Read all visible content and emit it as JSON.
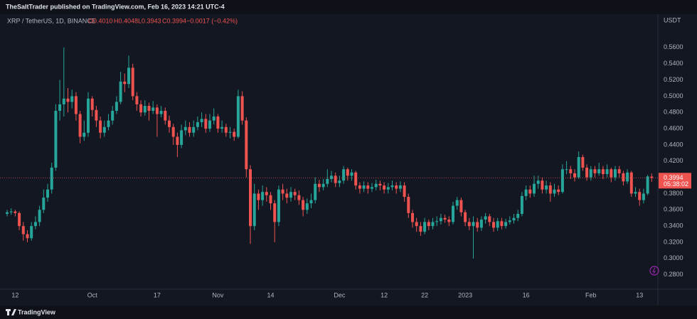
{
  "chart_data": {
    "type": "candlestick",
    "attribution": "TheSaltTrader published on TradingView.com, Feb 16, 2023 14:21 UTC-4",
    "title": "XRP / TetherUS, 1D, BINANCE",
    "ohlc_header": {
      "open": "O0.4010",
      "high": "H0.4048",
      "low": "L0.3943",
      "close": "C0.3994",
      "change": "−0.0017 (−0.42%)"
    },
    "currency": "USDT",
    "last_price_label": "0.3994",
    "countdown": "05:38:02",
    "brand": "TradingView",
    "up_color": "#26a69a",
    "down_color": "#ef5350",
    "categories": [
      null,
      null,
      "12",
      null,
      null,
      null,
      null,
      null,
      null,
      null,
      null,
      null,
      null,
      null,
      null,
      null,
      null,
      null,
      null,
      null,
      null,
      "Oct",
      null,
      null,
      null,
      null,
      null,
      null,
      null,
      null,
      null,
      null,
      null,
      null,
      null,
      null,
      null,
      "17",
      null,
      null,
      null,
      null,
      null,
      null,
      null,
      null,
      null,
      null,
      null,
      null,
      null,
      null,
      "Nov",
      null,
      null,
      null,
      null,
      null,
      null,
      null,
      null,
      null,
      null,
      null,
      null,
      "14",
      null,
      null,
      null,
      null,
      null,
      null,
      null,
      null,
      null,
      null,
      null,
      null,
      null,
      null,
      null,
      null,
      "Dec",
      null,
      null,
      null,
      null,
      null,
      null,
      null,
      null,
      null,
      null,
      "12",
      null,
      null,
      null,
      null,
      null,
      null,
      null,
      null,
      null,
      "22",
      null,
      null,
      null,
      null,
      null,
      null,
      null,
      null,
      null,
      "2023",
      null,
      null,
      null,
      null,
      null,
      null,
      null,
      null,
      null,
      null,
      null,
      null,
      null,
      null,
      "16",
      null,
      null,
      null,
      null,
      null,
      null,
      null,
      null,
      null,
      null,
      null,
      null,
      null,
      null,
      null,
      "Feb",
      null,
      null,
      null,
      null,
      null,
      null,
      null,
      null,
      null,
      null,
      null,
      "13",
      null,
      null,
      null
    ],
    "open": [
      0.355,
      0.357,
      0.358,
      0.356,
      0.34,
      0.33,
      0.325,
      0.34,
      0.345,
      0.36,
      0.375,
      0.385,
      0.412,
      0.482,
      0.49,
      0.497,
      0.493,
      0.5,
      0.478,
      0.45,
      0.455,
      0.497,
      0.483,
      0.47,
      0.455,
      0.462,
      0.47,
      0.482,
      0.493,
      0.518,
      0.515,
      0.535,
      0.5,
      0.49,
      0.48,
      0.488,
      0.482,
      0.486,
      0.478,
      0.482,
      0.47,
      0.462,
      0.45,
      0.44,
      0.458,
      0.462,
      0.455,
      0.462,
      0.468,
      0.472,
      0.46,
      0.47,
      0.475,
      0.46,
      0.462,
      0.455,
      0.456,
      0.45,
      0.5,
      0.47,
      0.41,
      0.34,
      0.38,
      0.372,
      0.382,
      0.378,
      0.368,
      0.345,
      0.385,
      0.38,
      0.375,
      0.382,
      0.378,
      0.372,
      0.36,
      0.368,
      0.372,
      0.392,
      0.388,
      0.392,
      0.398,
      0.402,
      0.393,
      0.396,
      0.41,
      0.402,
      0.406,
      0.39,
      0.386,
      0.39,
      0.386,
      0.388,
      0.392,
      0.39,
      0.385,
      0.388,
      0.39,
      0.386,
      0.39,
      0.376,
      0.356,
      0.345,
      0.34,
      0.333,
      0.345,
      0.34,
      0.345,
      0.346,
      0.35,
      0.348,
      0.345,
      0.365,
      0.372,
      0.357,
      0.345,
      0.34,
      0.345,
      0.338,
      0.348,
      0.352,
      0.345,
      0.338,
      0.346,
      0.34,
      0.345,
      0.347,
      0.35,
      0.355,
      0.377,
      0.385,
      0.38,
      0.392,
      0.396,
      0.385,
      0.39,
      0.38,
      0.385,
      0.382,
      0.41,
      0.41,
      0.405,
      0.4,
      0.425,
      0.412,
      0.4,
      0.41,
      0.405,
      0.41,
      0.404,
      0.41,
      0.4,
      0.41,
      0.405,
      0.395,
      0.406,
      0.38,
      0.382,
      0.372,
      0.38,
      0.401
    ],
    "high": [
      0.36,
      0.362,
      0.36,
      0.358,
      0.345,
      0.335,
      0.345,
      0.352,
      0.365,
      0.385,
      0.392,
      0.418,
      0.49,
      0.52,
      0.56,
      0.51,
      0.508,
      0.505,
      0.482,
      0.47,
      0.505,
      0.5,
      0.488,
      0.475,
      0.47,
      0.478,
      0.488,
      0.5,
      0.53,
      0.528,
      0.55,
      0.54,
      0.505,
      0.495,
      0.495,
      0.492,
      0.494,
      0.49,
      0.488,
      0.486,
      0.476,
      0.466,
      0.455,
      0.465,
      0.47,
      0.468,
      0.47,
      0.475,
      0.48,
      0.478,
      0.478,
      0.485,
      0.478,
      0.47,
      0.466,
      0.462,
      0.46,
      0.508,
      0.506,
      0.474,
      0.415,
      0.392,
      0.385,
      0.39,
      0.388,
      0.382,
      0.372,
      0.39,
      0.392,
      0.386,
      0.388,
      0.386,
      0.384,
      0.376,
      0.374,
      0.38,
      0.4,
      0.397,
      0.398,
      0.41,
      0.408,
      0.406,
      0.402,
      0.414,
      0.412,
      0.41,
      0.408,
      0.394,
      0.395,
      0.394,
      0.393,
      0.397,
      0.396,
      0.394,
      0.393,
      0.396,
      0.394,
      0.395,
      0.394,
      0.38,
      0.36,
      0.35,
      0.345,
      0.35,
      0.348,
      0.35,
      0.352,
      0.355,
      0.354,
      0.352,
      0.37,
      0.376,
      0.375,
      0.36,
      0.35,
      0.352,
      0.35,
      0.352,
      0.356,
      0.355,
      0.35,
      0.35,
      0.35,
      0.349,
      0.352,
      0.355,
      0.36,
      0.382,
      0.39,
      0.39,
      0.402,
      0.402,
      0.4,
      0.396,
      0.394,
      0.392,
      0.39,
      0.416,
      0.42,
      0.414,
      0.41,
      0.432,
      0.428,
      0.416,
      0.414,
      0.414,
      0.418,
      0.414,
      0.416,
      0.412,
      0.414,
      0.414,
      0.408,
      0.41,
      0.408,
      0.388,
      0.386,
      0.386,
      0.403,
      0.4048
    ],
    "low": [
      0.352,
      0.354,
      0.352,
      0.335,
      0.322,
      0.32,
      0.322,
      0.336,
      0.34,
      0.356,
      0.37,
      0.38,
      0.408,
      0.47,
      0.475,
      0.48,
      0.485,
      0.47,
      0.442,
      0.445,
      0.45,
      0.475,
      0.462,
      0.448,
      0.45,
      0.458,
      0.465,
      0.478,
      0.49,
      0.505,
      0.51,
      0.495,
      0.482,
      0.475,
      0.476,
      0.47,
      0.478,
      0.45,
      0.474,
      0.465,
      0.455,
      0.44,
      0.425,
      0.436,
      0.452,
      0.45,
      0.45,
      0.458,
      0.462,
      0.455,
      0.456,
      0.465,
      0.455,
      0.455,
      0.45,
      0.448,
      0.445,
      0.448,
      0.465,
      0.4,
      0.318,
      0.335,
      0.36,
      0.365,
      0.37,
      0.36,
      0.32,
      0.34,
      0.372,
      0.368,
      0.37,
      0.372,
      0.366,
      0.352,
      0.355,
      0.362,
      0.368,
      0.382,
      0.384,
      0.388,
      0.394,
      0.388,
      0.388,
      0.392,
      0.396,
      0.396,
      0.385,
      0.38,
      0.382,
      0.38,
      0.382,
      0.384,
      0.384,
      0.38,
      0.38,
      0.384,
      0.38,
      0.382,
      0.37,
      0.35,
      0.338,
      0.333,
      0.328,
      0.33,
      0.335,
      0.336,
      0.34,
      0.342,
      0.344,
      0.34,
      0.342,
      0.36,
      0.352,
      0.34,
      0.335,
      0.3,
      0.333,
      0.334,
      0.343,
      0.34,
      0.333,
      0.334,
      0.336,
      0.337,
      0.342,
      0.343,
      0.346,
      0.352,
      0.372,
      0.375,
      0.376,
      0.386,
      0.38,
      0.38,
      0.37,
      0.376,
      0.378,
      0.38,
      0.404,
      0.398,
      0.395,
      0.398,
      0.408,
      0.396,
      0.396,
      0.4,
      0.402,
      0.398,
      0.4,
      0.394,
      0.396,
      0.4,
      0.39,
      0.392,
      0.376,
      0.376,
      0.365,
      0.368,
      0.378,
      0.3943
    ],
    "close": [
      0.357,
      0.358,
      0.356,
      0.34,
      0.33,
      0.325,
      0.34,
      0.345,
      0.36,
      0.375,
      0.385,
      0.412,
      0.482,
      0.49,
      0.497,
      0.493,
      0.5,
      0.478,
      0.45,
      0.455,
      0.497,
      0.483,
      0.47,
      0.455,
      0.462,
      0.47,
      0.482,
      0.493,
      0.518,
      0.515,
      0.535,
      0.5,
      0.49,
      0.48,
      0.488,
      0.482,
      0.486,
      0.478,
      0.482,
      0.47,
      0.462,
      0.45,
      0.44,
      0.458,
      0.462,
      0.455,
      0.462,
      0.468,
      0.472,
      0.46,
      0.47,
      0.475,
      0.46,
      0.462,
      0.455,
      0.456,
      0.45,
      0.5,
      0.47,
      0.41,
      0.34,
      0.38,
      0.372,
      0.382,
      0.378,
      0.368,
      0.345,
      0.385,
      0.38,
      0.375,
      0.382,
      0.378,
      0.372,
      0.36,
      0.368,
      0.372,
      0.392,
      0.388,
      0.392,
      0.398,
      0.402,
      0.393,
      0.396,
      0.41,
      0.402,
      0.406,
      0.39,
      0.386,
      0.39,
      0.386,
      0.388,
      0.392,
      0.39,
      0.385,
      0.388,
      0.39,
      0.386,
      0.39,
      0.376,
      0.356,
      0.345,
      0.34,
      0.333,
      0.345,
      0.34,
      0.345,
      0.346,
      0.35,
      0.348,
      0.345,
      0.365,
      0.372,
      0.357,
      0.345,
      0.34,
      0.345,
      0.338,
      0.348,
      0.352,
      0.345,
      0.338,
      0.346,
      0.34,
      0.345,
      0.347,
      0.35,
      0.355,
      0.377,
      0.385,
      0.38,
      0.392,
      0.396,
      0.385,
      0.39,
      0.38,
      0.385,
      0.382,
      0.41,
      0.41,
      0.405,
      0.4,
      0.425,
      0.412,
      0.4,
      0.41,
      0.405,
      0.41,
      0.404,
      0.41,
      0.4,
      0.41,
      0.405,
      0.395,
      0.406,
      0.38,
      0.382,
      0.372,
      0.38,
      0.4011,
      0.3994
    ],
    "ylim": [
      0.264,
      0.601
    ],
    "yticks": [
      {
        "value": 0.28,
        "label": "0.2800"
      },
      {
        "value": 0.3,
        "label": "0.3000"
      },
      {
        "value": 0.32,
        "label": "0.3200"
      },
      {
        "value": 0.34,
        "label": "0.3400"
      },
      {
        "value": 0.36,
        "label": "0.3600"
      },
      {
        "value": 0.38,
        "label": "0.3800"
      },
      {
        "value": 0.42,
        "label": "0.4200"
      },
      {
        "value": 0.44,
        "label": "0.4400"
      },
      {
        "value": 0.46,
        "label": "0.4600"
      },
      {
        "value": 0.48,
        "label": "0.4800"
      },
      {
        "value": 0.5,
        "label": "0.5000"
      },
      {
        "value": 0.52,
        "label": "0.5200"
      },
      {
        "value": 0.54,
        "label": "0.5400"
      },
      {
        "value": 0.56,
        "label": "0.5600"
      }
    ]
  }
}
